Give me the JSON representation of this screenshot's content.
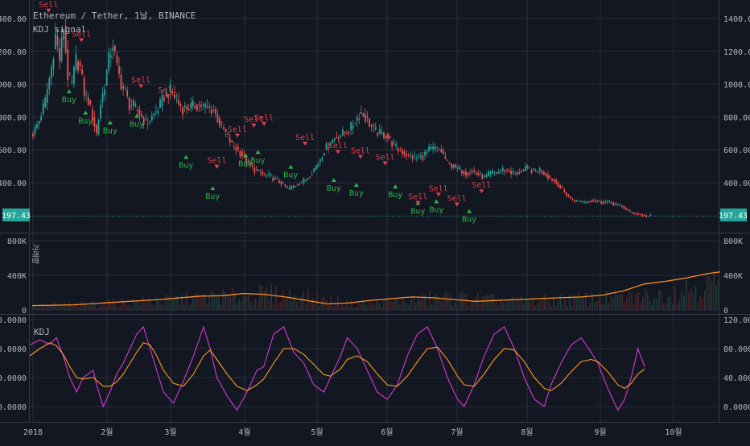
{
  "header": {
    "title": "Ethereum / Tether, 1날, BINANCE",
    "subtitle": "KDJ signal"
  },
  "last_price": "197.43",
  "colors": {
    "background": "#131722",
    "grid": "#2a2e39",
    "up": "#26a69a",
    "down": "#ef5350",
    "buy": "#2db34a",
    "sell": "#e0404a",
    "volume_ma": "#ff8c1a",
    "kdj_j": "#d43ad6",
    "kdj_k": "#ff9a20",
    "price_line": "#26a69a",
    "text": "#b2b5be"
  },
  "volume_label": "거래량",
  "kdj_label": "KDJ",
  "buy_label": "Buy",
  "sell_label": "Sell",
  "chart_data": [
    {
      "type": "candlestick",
      "title": "Ethereum / Tether, 1날, BINANCE",
      "y_ticks": [
        "1400.00",
        "1200.00",
        "1000.00",
        "800.00",
        "600.00",
        "400.00"
      ],
      "ylim": [
        140,
        1480
      ],
      "x_ticks": [
        "2018",
        "2월",
        "3월",
        "4월",
        "5월",
        "6월",
        "7월",
        "8월",
        "9월",
        "10월"
      ],
      "last_price": 197.43,
      "close_path": [
        [
          0,
          700
        ],
        [
          3,
          780
        ],
        [
          6,
          900
        ],
        [
          9,
          1100
        ],
        [
          11,
          1300
        ],
        [
          13,
          1150
        ],
        [
          15,
          1350
        ],
        [
          17,
          1050
        ],
        [
          19,
          1000
        ],
        [
          21,
          1150
        ],
        [
          23,
          1100
        ],
        [
          25,
          950
        ],
        [
          27,
          900
        ],
        [
          29,
          800
        ],
        [
          31,
          700
        ],
        [
          33,
          880
        ],
        [
          35,
          1000
        ],
        [
          37,
          1150
        ],
        [
          39,
          1250
        ],
        [
          41,
          1100
        ],
        [
          43,
          1000
        ],
        [
          45,
          950
        ],
        [
          47,
          870
        ],
        [
          49,
          870
        ],
        [
          52,
          820
        ],
        [
          55,
          760
        ],
        [
          58,
          800
        ],
        [
          61,
          850
        ],
        [
          64,
          930
        ],
        [
          67,
          960
        ],
        [
          70,
          900
        ],
        [
          73,
          850
        ],
        [
          76,
          860
        ],
        [
          79,
          870
        ],
        [
          82,
          870
        ],
        [
          85,
          860
        ],
        [
          88,
          840
        ],
        [
          91,
          760
        ],
        [
          94,
          700
        ],
        [
          97,
          630
        ],
        [
          100,
          600
        ],
        [
          103,
          550
        ],
        [
          106,
          500
        ],
        [
          109,
          470
        ],
        [
          112,
          450
        ],
        [
          115,
          440
        ],
        [
          118,
          420
        ],
        [
          121,
          400
        ],
        [
          124,
          360
        ],
        [
          127,
          380
        ],
        [
          130,
          400
        ],
        [
          133,
          420
        ],
        [
          136,
          470
        ],
        [
          139,
          520
        ],
        [
          142,
          600
        ],
        [
          145,
          650
        ],
        [
          148,
          680
        ],
        [
          151,
          700
        ],
        [
          154,
          720
        ],
        [
          157,
          780
        ],
        [
          160,
          830
        ],
        [
          163,
          780
        ],
        [
          166,
          720
        ],
        [
          169,
          700
        ],
        [
          172,
          690
        ],
        [
          175,
          640
        ],
        [
          178,
          600
        ],
        [
          181,
          580
        ],
        [
          184,
          560
        ],
        [
          187,
          550
        ],
        [
          190,
          560
        ],
        [
          193,
          600
        ],
        [
          196,
          610
        ],
        [
          199,
          590
        ],
        [
          202,
          520
        ],
        [
          205,
          500
        ],
        [
          208,
          480
        ],
        [
          211,
          460
        ],
        [
          214,
          470
        ],
        [
          217,
          450
        ],
        [
          220,
          430
        ],
        [
          223,
          460
        ],
        [
          226,
          460
        ],
        [
          229,
          480
        ],
        [
          232,
          470
        ],
        [
          235,
          450
        ],
        [
          238,
          470
        ],
        [
          241,
          490
        ],
        [
          244,
          470
        ],
        [
          247,
          480
        ],
        [
          250,
          450
        ],
        [
          253,
          420
        ],
        [
          256,
          390
        ],
        [
          259,
          340
        ],
        [
          262,
          300
        ],
        [
          265,
          290
        ],
        [
          268,
          285
        ],
        [
          271,
          290
        ],
        [
          274,
          295
        ],
        [
          277,
          280
        ],
        [
          280,
          285
        ],
        [
          283,
          270
        ],
        [
          286,
          260
        ],
        [
          289,
          240
        ],
        [
          292,
          215
        ],
        [
          295,
          210
        ],
        [
          298,
          198
        ],
        [
          301,
          197
        ]
      ],
      "buy_signals": [
        [
          18,
          950
        ],
        [
          26,
          820
        ],
        [
          38,
          760
        ],
        [
          51,
          800
        ],
        [
          75,
          550
        ],
        [
          88,
          360
        ],
        [
          104,
          560
        ],
        [
          110,
          580
        ],
        [
          126,
          490
        ],
        [
          147,
          410
        ],
        [
          158,
          380
        ],
        [
          177,
          370
        ],
        [
          188,
          270
        ],
        [
          197,
          280
        ],
        [
          213,
          220
        ]
      ],
      "sell_signals": [
        [
          8,
          1450
        ],
        [
          24,
          1270
        ],
        [
          53,
          990
        ],
        [
          66,
          930
        ],
        [
          90,
          500
        ],
        [
          100,
          690
        ],
        [
          108,
          750
        ],
        [
          113,
          760
        ],
        [
          133,
          640
        ],
        [
          149,
          590
        ],
        [
          160,
          560
        ],
        [
          172,
          520
        ],
        [
          188,
          280
        ],
        [
          198,
          330
        ],
        [
          207,
          270
        ],
        [
          219,
          350
        ]
      ]
    },
    {
      "type": "area",
      "title": "거래량",
      "y_ticks": [
        "800K",
        "400K",
        "0"
      ],
      "ylim": [
        0,
        850000
      ],
      "ma_series": [
        [
          0,
          50000
        ],
        [
          20,
          60000
        ],
        [
          40,
          90000
        ],
        [
          60,
          120000
        ],
        [
          80,
          160000
        ],
        [
          90,
          165000
        ],
        [
          100,
          190000
        ],
        [
          110,
          180000
        ],
        [
          120,
          150000
        ],
        [
          130,
          110000
        ],
        [
          140,
          70000
        ],
        [
          150,
          80000
        ],
        [
          160,
          110000
        ],
        [
          170,
          130000
        ],
        [
          180,
          150000
        ],
        [
          190,
          140000
        ],
        [
          200,
          120000
        ],
        [
          210,
          100000
        ],
        [
          220,
          110000
        ],
        [
          230,
          120000
        ],
        [
          240,
          130000
        ],
        [
          250,
          140000
        ],
        [
          260,
          150000
        ],
        [
          270,
          170000
        ],
        [
          280,
          220000
        ],
        [
          290,
          300000
        ],
        [
          300,
          330000
        ],
        [
          310,
          370000
        ],
        [
          320,
          420000
        ],
        [
          326,
          440000
        ]
      ]
    },
    {
      "type": "line",
      "title": "KDJ",
      "y_ticks": [
        "120.0000",
        "80.0000",
        "40.0000",
        "0.0000"
      ],
      "ylim": [
        -10,
        122
      ],
      "series": [
        {
          "name": "J",
          "values": [
            [
              0,
              85
            ],
            [
              6,
              92
            ],
            [
              12,
              86
            ],
            [
              16,
              95
            ],
            [
              20,
              70
            ],
            [
              24,
              40
            ],
            [
              28,
              20
            ],
            [
              32,
              40
            ],
            [
              38,
              50
            ],
            [
              40,
              30
            ],
            [
              44,
              0
            ],
            [
              48,
              20
            ],
            [
              52,
              45
            ],
            [
              56,
              60
            ],
            [
              60,
              80
            ],
            [
              64,
              100
            ],
            [
              68,
              110
            ],
            [
              72,
              80
            ],
            [
              76,
              50
            ],
            [
              80,
              20
            ],
            [
              86,
              5
            ],
            [
              92,
              35
            ],
            [
              98,
              70
            ],
            [
              104,
              110
            ],
            [
              108,
              80
            ],
            [
              112,
              40
            ],
            [
              118,
              15
            ],
            [
              124,
              -5
            ],
            [
              130,
              20
            ],
            [
              136,
              50
            ],
            [
              140,
              55
            ],
            [
              146,
              100
            ],
            [
              152,
              110
            ],
            [
              158,
              75
            ],
            [
              164,
              60
            ],
            [
              170,
              30
            ],
            [
              176,
              20
            ],
            [
              180,
              40
            ],
            [
              186,
              70
            ],
            [
              190,
              95
            ],
            [
              196,
              80
            ],
            [
              202,
              50
            ],
            [
              208,
              20
            ],
            [
              214,
              10
            ],
            [
              220,
              30
            ],
            [
              226,
              70
            ],
            [
              232,
              100
            ],
            [
              238,
              110
            ],
            [
              244,
              80
            ],
            [
              250,
              40
            ],
            [
              256,
              10
            ],
            [
              260,
              0
            ],
            [
              266,
              30
            ],
            [
              272,
              70
            ],
            [
              278,
              100
            ],
            [
              284,
              110
            ],
            [
              290,
              80
            ],
            [
              296,
              40
            ],
            [
              302,
              10
            ],
            [
              308,
              0
            ],
            [
              312,
              30
            ],
            [
              318,
              60
            ],
            [
              324,
              85
            ],
            [
              330,
              95
            ],
            [
              336,
              75
            ],
            [
              340,
              60
            ],
            [
              346,
              25
            ],
            [
              352,
              -5
            ],
            [
              356,
              10
            ],
            [
              360,
              40
            ],
            [
              364,
              80
            ],
            [
              368,
              55
            ]
          ]
        },
        {
          "name": "K",
          "values": [
            [
              0,
              70
            ],
            [
              6,
              80
            ],
            [
              12,
              88
            ],
            [
              16,
              84
            ],
            [
              20,
              72
            ],
            [
              24,
              55
            ],
            [
              28,
              40
            ],
            [
              32,
              38
            ],
            [
              38,
              40
            ],
            [
              40,
              36
            ],
            [
              44,
              28
            ],
            [
              48,
              28
            ],
            [
              52,
              34
            ],
            [
              56,
              45
            ],
            [
              60,
              60
            ],
            [
              64,
              75
            ],
            [
              68,
              88
            ],
            [
              72,
              85
            ],
            [
              76,
              70
            ],
            [
              80,
              50
            ],
            [
              86,
              32
            ],
            [
              92,
              28
            ],
            [
              98,
              45
            ],
            [
              104,
              70
            ],
            [
              108,
              78
            ],
            [
              112,
              65
            ],
            [
              118,
              45
            ],
            [
              124,
              28
            ],
            [
              130,
              22
            ],
            [
              136,
              30
            ],
            [
              140,
              38
            ],
            [
              146,
              60
            ],
            [
              152,
              80
            ],
            [
              158,
              80
            ],
            [
              164,
              72
            ],
            [
              170,
              58
            ],
            [
              176,
              44
            ],
            [
              180,
              42
            ],
            [
              186,
              52
            ],
            [
              190,
              65
            ],
            [
              196,
              70
            ],
            [
              202,
              62
            ],
            [
              208,
              45
            ],
            [
              214,
              30
            ],
            [
              220,
              28
            ],
            [
              226,
              42
            ],
            [
              232,
              62
            ],
            [
              238,
              80
            ],
            [
              244,
              82
            ],
            [
              250,
              65
            ],
            [
              256,
              42
            ],
            [
              260,
              30
            ],
            [
              266,
              28
            ],
            [
              272,
              45
            ],
            [
              278,
              65
            ],
            [
              284,
              80
            ],
            [
              290,
              78
            ],
            [
              296,
              62
            ],
            [
              302,
              40
            ],
            [
              308,
              25
            ],
            [
              312,
              22
            ],
            [
              318,
              32
            ],
            [
              324,
              48
            ],
            [
              330,
              62
            ],
            [
              336,
              65
            ],
            [
              340,
              62
            ],
            [
              346,
              48
            ],
            [
              352,
              30
            ],
            [
              356,
              25
            ],
            [
              360,
              32
            ],
            [
              364,
              45
            ],
            [
              368,
              52
            ]
          ]
        }
      ]
    }
  ]
}
